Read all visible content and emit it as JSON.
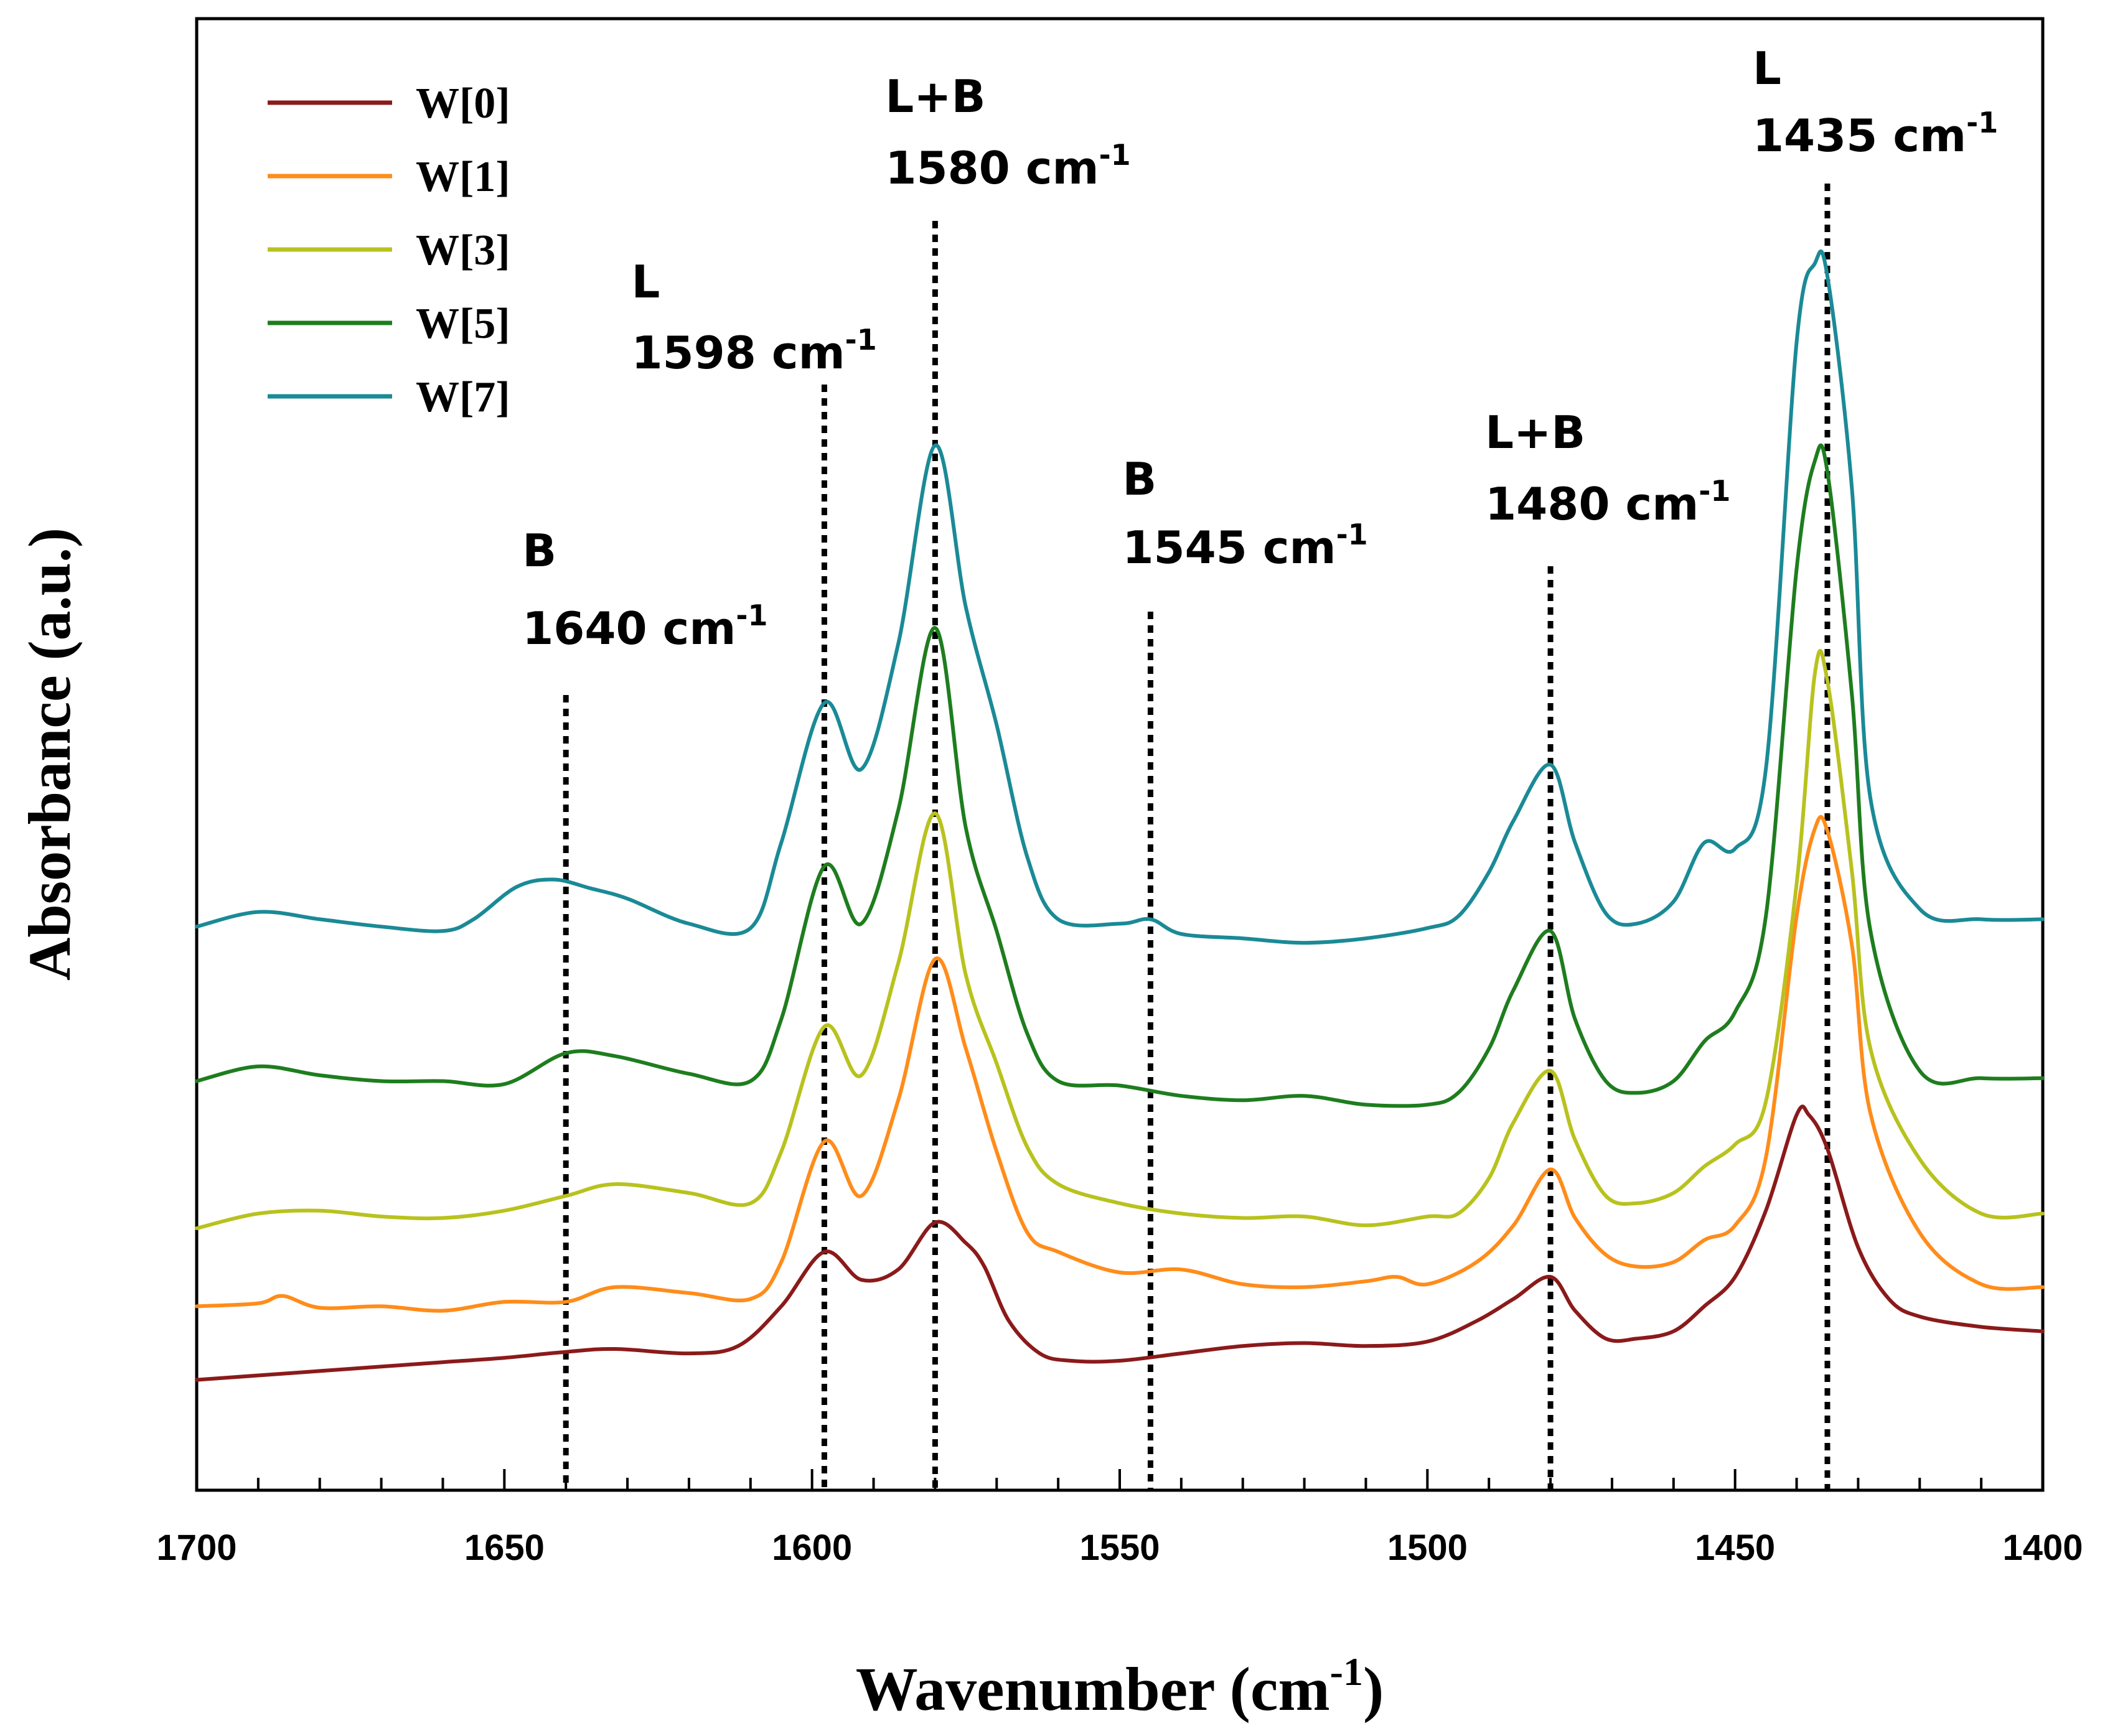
{
  "chart_data": {
    "type": "line",
    "title": "",
    "xlabel": "Wavenumber (cm",
    "xlabel_sup": "-1",
    "xlabel_end": ")",
    "ylabel": "Absorbance (a.u.)",
    "xlim": [
      1700,
      1400
    ],
    "ylim": [
      0,
      1
    ],
    "x_ticks": [
      1700,
      1650,
      1600,
      1550,
      1500,
      1450,
      1400
    ],
    "x_tick_labels": [
      "1700",
      "1650",
      "1600",
      "1550",
      "1500",
      "1450",
      "1400"
    ],
    "y_ticks_shown": false,
    "legend_position": "top-left",
    "series": [
      {
        "name": "W[0]",
        "color": "#8b1a1a",
        "x": [
          1700,
          1690,
          1680,
          1670,
          1660,
          1650,
          1640,
          1632,
          1620,
          1612,
          1605,
          1598,
          1592,
          1586,
          1580,
          1575,
          1572,
          1568,
          1563,
          1558,
          1550,
          1540,
          1530,
          1520,
          1510,
          1500,
          1492,
          1486,
          1480,
          1476,
          1471,
          1466,
          1460,
          1455,
          1450,
          1445,
          1440,
          1438,
          1435,
          1430,
          1425,
          1420,
          1410,
          1400
        ],
        "y": [
          0.075,
          0.078,
          0.081,
          0.084,
          0.087,
          0.09,
          0.094,
          0.096,
          0.093,
          0.098,
          0.125,
          0.162,
          0.143,
          0.15,
          0.182,
          0.168,
          0.152,
          0.115,
          0.093,
          0.088,
          0.088,
          0.093,
          0.098,
          0.1,
          0.098,
          0.101,
          0.115,
          0.13,
          0.145,
          0.122,
          0.103,
          0.103,
          0.108,
          0.125,
          0.145,
          0.19,
          0.255,
          0.255,
          0.232,
          0.165,
          0.13,
          0.118,
          0.111,
          0.108
        ]
      },
      {
        "name": "W[1]",
        "color": "#ff8c1a",
        "x": [
          1700,
          1690,
          1686,
          1680,
          1670,
          1660,
          1650,
          1640,
          1632,
          1620,
          1610,
          1605,
          1598,
          1592,
          1586,
          1580,
          1575,
          1570,
          1565,
          1560,
          1550,
          1540,
          1530,
          1520,
          1510,
          1505,
          1500,
          1492,
          1486,
          1480,
          1476,
          1471,
          1466,
          1460,
          1455,
          1450,
          1445,
          1440,
          1437,
          1435,
          1431,
          1428,
          1420,
          1410,
          1400
        ],
        "y": [
          0.125,
          0.127,
          0.132,
          0.124,
          0.125,
          0.122,
          0.128,
          0.128,
          0.138,
          0.134,
          0.13,
          0.155,
          0.237,
          0.2,
          0.265,
          0.361,
          0.3,
          0.23,
          0.175,
          0.162,
          0.148,
          0.15,
          0.14,
          0.138,
          0.142,
          0.145,
          0.14,
          0.155,
          0.18,
          0.218,
          0.185,
          0.16,
          0.152,
          0.155,
          0.17,
          0.18,
          0.226,
          0.39,
          0.45,
          0.448,
          0.37,
          0.256,
          0.175,
          0.14,
          0.138
        ]
      },
      {
        "name": "W[3]",
        "color": "#b8c21e",
        "x": [
          1700,
          1690,
          1680,
          1670,
          1660,
          1650,
          1640,
          1632,
          1620,
          1610,
          1605,
          1598,
          1592,
          1586,
          1580,
          1575,
          1570,
          1565,
          1560,
          1550,
          1540,
          1530,
          1520,
          1510,
          1500,
          1495,
          1490,
          1486,
          1480,
          1476,
          1471,
          1466,
          1460,
          1455,
          1450,
          1445,
          1440,
          1437,
          1435,
          1431,
          1428,
          1420,
          1410,
          1400
        ],
        "y": [
          0.178,
          0.188,
          0.19,
          0.186,
          0.185,
          0.19,
          0.2,
          0.208,
          0.202,
          0.195,
          0.23,
          0.315,
          0.282,
          0.358,
          0.46,
          0.35,
          0.29,
          0.233,
          0.208,
          0.195,
          0.188,
          0.185,
          0.186,
          0.18,
          0.186,
          0.188,
          0.212,
          0.25,
          0.285,
          0.238,
          0.2,
          0.195,
          0.202,
          0.22,
          0.235,
          0.264,
          0.412,
          0.556,
          0.55,
          0.42,
          0.3,
          0.225,
          0.188,
          0.188
        ]
      },
      {
        "name": "W[5]",
        "color": "#1e7d1e",
        "x": [
          1700,
          1690,
          1680,
          1670,
          1660,
          1650,
          1640,
          1632,
          1620,
          1610,
          1605,
          1598,
          1592,
          1586,
          1580,
          1575,
          1570,
          1565,
          1560,
          1550,
          1540,
          1530,
          1520,
          1510,
          1500,
          1495,
          1490,
          1486,
          1480,
          1476,
          1471,
          1466,
          1460,
          1455,
          1450,
          1445,
          1440,
          1437,
          1435,
          1431,
          1428,
          1420,
          1410,
          1400
        ],
        "y": [
          0.278,
          0.288,
          0.282,
          0.278,
          0.278,
          0.276,
          0.297,
          0.295,
          0.283,
          0.278,
          0.32,
          0.424,
          0.385,
          0.462,
          0.586,
          0.45,
          0.38,
          0.31,
          0.278,
          0.275,
          0.268,
          0.265,
          0.268,
          0.262,
          0.262,
          0.27,
          0.3,
          0.34,
          0.38,
          0.32,
          0.278,
          0.27,
          0.278,
          0.305,
          0.325,
          0.39,
          0.626,
          0.7,
          0.692,
          0.54,
          0.38,
          0.285,
          0.28,
          0.28
        ]
      },
      {
        "name": "W[7]",
        "color": "#1a8a96",
        "x": [
          1700,
          1690,
          1680,
          1670,
          1660,
          1655,
          1648,
          1642,
          1636,
          1630,
          1620,
          1610,
          1605,
          1598,
          1592,
          1586,
          1580,
          1575,
          1570,
          1565,
          1560,
          1550,
          1545,
          1540,
          1530,
          1520,
          1510,
          1500,
          1495,
          1490,
          1486,
          1480,
          1476,
          1471,
          1466,
          1460,
          1455,
          1450,
          1445,
          1440,
          1437,
          1435,
          1431,
          1428,
          1420,
          1410,
          1400
        ],
        "y": [
          0.383,
          0.393,
          0.388,
          0.383,
          0.38,
          0.388,
          0.41,
          0.415,
          0.409,
          0.402,
          0.385,
          0.382,
          0.44,
          0.535,
          0.49,
          0.575,
          0.71,
          0.6,
          0.52,
          0.43,
          0.388,
          0.385,
          0.388,
          0.378,
          0.375,
          0.372,
          0.375,
          0.382,
          0.39,
          0.42,
          0.455,
          0.493,
          0.44,
          0.392,
          0.385,
          0.4,
          0.44,
          0.436,
          0.49,
          0.78,
          0.834,
          0.825,
          0.68,
          0.47,
          0.395,
          0.388,
          0.388
        ]
      }
    ],
    "annotations": [
      {
        "label": "B",
        "wavenumber_text": "1640 cm",
        "sup": "-1",
        "x": 1640
      },
      {
        "label": "L",
        "wavenumber_text": "1598 cm",
        "sup": "-1",
        "x": 1598
      },
      {
        "label": "L+B",
        "wavenumber_text": "1580 cm",
        "sup": "-1",
        "x": 1580
      },
      {
        "label": "B",
        "wavenumber_text": "1545 cm",
        "sup": "-1",
        "x": 1545
      },
      {
        "label": "L+B",
        "wavenumber_text": "1480 cm",
        "sup": "-1",
        "x": 1480
      },
      {
        "label": "L",
        "wavenumber_text": "1435 cm",
        "sup": "-1",
        "x": 1435
      }
    ]
  }
}
